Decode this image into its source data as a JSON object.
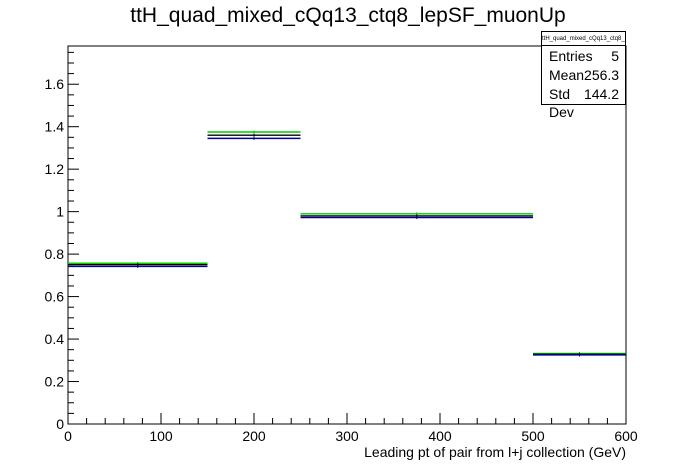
{
  "chart_data": {
    "type": "bar",
    "title": "ttH_quad_mixed_cQq13_ctq8_lepSF_muonUp",
    "xlabel": "Leading pt of pair from l+j collection (GeV)",
    "ylabel": "",
    "xlim": [
      0,
      600
    ],
    "ylim": [
      0,
      1.78
    ],
    "x_ticks": [
      "0",
      "100",
      "200",
      "300",
      "400",
      "500",
      "600"
    ],
    "y_ticks": [
      "0",
      "0.2",
      "0.4",
      "0.6",
      "0.8",
      "1",
      "1.2",
      "1.4",
      "1.6"
    ],
    "bins": [
      [
        0,
        150
      ],
      [
        150,
        250
      ],
      [
        250,
        500
      ],
      [
        500,
        600
      ]
    ],
    "series": [
      {
        "color": "#00cc00",
        "values": [
          0.757,
          1.375,
          0.99,
          0.332
        ]
      },
      {
        "color": "#000000",
        "values": [
          0.75,
          1.36,
          0.98,
          0.328
        ]
      },
      {
        "color": "#000099",
        "values": [
          0.742,
          1.345,
          0.972,
          0.325
        ]
      }
    ],
    "legend": "none",
    "grid": false
  },
  "stats": {
    "name": "ttH_quad_mixed_cQq13_ctq8_lepSF_muonUp",
    "rows": [
      {
        "label": "Entries",
        "value": "5"
      },
      {
        "label": "Mean",
        "value": "256.3"
      },
      {
        "label": "Std Dev",
        "value": "144.2"
      }
    ]
  }
}
